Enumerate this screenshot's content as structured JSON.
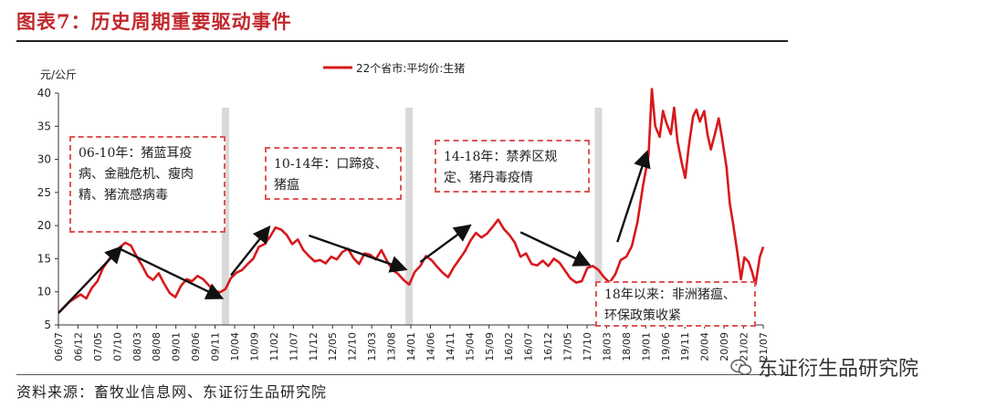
{
  "header": {
    "title": "图表7：历史周期重要驱动事件"
  },
  "footer": {
    "source": "资料来源：畜牧业信息网、东证衍生品研究院",
    "watermark": "东证衍生品研究院",
    "watermark_icon": "wechat-icon"
  },
  "colors": {
    "series": "#d7191c",
    "title": "#c0282d",
    "annotation_border": "#e05555",
    "shade": "#d9d9d9"
  },
  "chart_data": {
    "type": "line",
    "ylabel": "元/公斤",
    "ylim": [
      5,
      40
    ],
    "yticks": [
      5,
      10,
      15,
      20,
      25,
      30,
      35,
      40
    ],
    "x_tick_labels": [
      "06/07",
      "06/12",
      "07/05",
      "07/10",
      "08/03",
      "08/08",
      "09/01",
      "09/06",
      "09/11",
      "10/04",
      "10/09",
      "11/02",
      "11/07",
      "11/12",
      "12/05",
      "12/10",
      "13/03",
      "13/08",
      "14/01",
      "14/06",
      "14/11",
      "15/04",
      "15/09",
      "16/02",
      "16/07",
      "16/12",
      "17/05",
      "17/10",
      "18/03",
      "18/08",
      "19/01",
      "19/06",
      "19/11",
      "20/04",
      "20/09",
      "21/02",
      "21/07"
    ],
    "legend_position": "top-center",
    "series": [
      {
        "name": "22个省市:平均价:生猪",
        "points": [
          [
            0,
            6.8
          ],
          [
            1,
            8.5
          ],
          [
            2,
            9.6
          ],
          [
            2.5,
            9.0
          ],
          [
            3,
            10.6
          ],
          [
            3.5,
            11.6
          ],
          [
            4,
            13.6
          ],
          [
            4.5,
            14.8
          ],
          [
            5,
            15.9
          ],
          [
            5.5,
            16.7
          ],
          [
            6,
            17.4
          ],
          [
            6.5,
            17.0
          ],
          [
            7,
            15.4
          ],
          [
            7.5,
            14.0
          ],
          [
            8,
            12.4
          ],
          [
            8.5,
            11.8
          ],
          [
            9,
            12.8
          ],
          [
            9.5,
            11.2
          ],
          [
            10,
            9.8
          ],
          [
            10.5,
            9.2
          ],
          [
            11,
            10.9
          ],
          [
            11.5,
            11.9
          ],
          [
            12,
            11.6
          ],
          [
            12.5,
            12.4
          ],
          [
            13,
            11.9
          ],
          [
            13.5,
            11.0
          ],
          [
            14,
            10.2
          ],
          [
            14.5,
            9.9
          ],
          [
            15,
            10.4
          ],
          [
            15.5,
            12.1
          ],
          [
            16,
            12.9
          ],
          [
            16.5,
            13.3
          ],
          [
            17,
            14.2
          ],
          [
            17.5,
            15.0
          ],
          [
            18,
            16.8
          ],
          [
            18.5,
            17.2
          ],
          [
            19,
            18.3
          ],
          [
            19.5,
            19.7
          ],
          [
            20,
            19.4
          ],
          [
            20.5,
            18.6
          ],
          [
            21,
            17.2
          ],
          [
            21.5,
            17.9
          ],
          [
            22,
            16.3
          ],
          [
            22.5,
            15.4
          ],
          [
            23,
            14.6
          ],
          [
            23.5,
            14.8
          ],
          [
            24,
            14.3
          ],
          [
            24.5,
            15.3
          ],
          [
            25,
            14.9
          ],
          [
            25.5,
            16.0
          ],
          [
            26,
            16.5
          ],
          [
            26.5,
            15.1
          ],
          [
            27,
            14.2
          ],
          [
            27.5,
            15.8
          ],
          [
            28,
            15.6
          ],
          [
            28.5,
            14.9
          ],
          [
            29,
            16.3
          ],
          [
            29.5,
            14.7
          ],
          [
            30,
            13.3
          ],
          [
            30.5,
            12.7
          ],
          [
            31,
            11.8
          ],
          [
            31.5,
            11.1
          ],
          [
            32,
            13.0
          ],
          [
            32.5,
            13.9
          ],
          [
            33,
            15.4
          ],
          [
            33.5,
            14.8
          ],
          [
            34,
            13.8
          ],
          [
            34.5,
            12.9
          ],
          [
            35,
            12.2
          ],
          [
            35.5,
            13.7
          ],
          [
            36,
            14.9
          ],
          [
            36.5,
            16.1
          ],
          [
            37,
            17.7
          ],
          [
            37.5,
            18.9
          ],
          [
            38,
            18.2
          ],
          [
            38.5,
            18.8
          ],
          [
            39,
            19.8
          ],
          [
            39.5,
            20.9
          ],
          [
            40,
            19.5
          ],
          [
            40.5,
            18.6
          ],
          [
            41,
            17.4
          ],
          [
            41.5,
            15.3
          ],
          [
            42,
            15.8
          ],
          [
            42.5,
            14.2
          ],
          [
            43,
            14.0
          ],
          [
            43.5,
            14.7
          ],
          [
            44,
            13.9
          ],
          [
            44.5,
            15.0
          ],
          [
            45,
            14.4
          ],
          [
            45.5,
            13.2
          ],
          [
            46,
            12.0
          ],
          [
            46.5,
            11.4
          ],
          [
            47,
            11.6
          ],
          [
            47.5,
            13.6
          ],
          [
            48,
            13.9
          ],
          [
            48.5,
            13.3
          ],
          [
            49,
            12.2
          ],
          [
            49.5,
            11.4
          ],
          [
            50,
            12.6
          ],
          [
            50.5,
            14.8
          ],
          [
            51,
            15.3
          ],
          [
            51.5,
            16.9
          ],
          [
            52,
            20.5
          ],
          [
            52.5,
            26.0
          ],
          [
            53,
            30.6
          ],
          [
            53.3,
            40.6
          ],
          [
            53.6,
            35.0
          ],
          [
            54,
            33.4
          ],
          [
            54.3,
            37.3
          ],
          [
            54.6,
            35.5
          ],
          [
            55,
            33.8
          ],
          [
            55.3,
            37.8
          ],
          [
            55.6,
            32.7
          ],
          [
            56,
            29.3
          ],
          [
            56.3,
            27.2
          ],
          [
            56.6,
            31.8
          ],
          [
            57,
            36.5
          ],
          [
            57.3,
            37.5
          ],
          [
            57.6,
            35.7
          ],
          [
            58,
            37.3
          ],
          [
            58.3,
            33.7
          ],
          [
            58.6,
            31.5
          ],
          [
            59,
            34.1
          ],
          [
            59.3,
            36.2
          ],
          [
            59.6,
            33.2
          ],
          [
            60,
            28.8
          ],
          [
            60.3,
            23.3
          ],
          [
            60.6,
            20.2
          ],
          [
            61,
            15.7
          ],
          [
            61.3,
            11.9
          ],
          [
            61.6,
            15.2
          ],
          [
            62,
            14.5
          ],
          [
            62.3,
            13.0
          ],
          [
            62.6,
            11.1
          ],
          [
            63,
            15.3
          ],
          [
            63.3,
            16.8
          ]
        ]
      }
    ],
    "shaded_periods": [
      15,
      31.5,
      48.5
    ],
    "annotations": [
      "06-10年：猪蓝耳疫病、金融危机、瘦肉精、猪流感病毒",
      "10-14年：口蹄疫、猪瘟",
      "14-18年：禁养区规定、猪丹毒疫情",
      "18年以来：非洲猪瘟、环保政策收紧"
    ]
  }
}
